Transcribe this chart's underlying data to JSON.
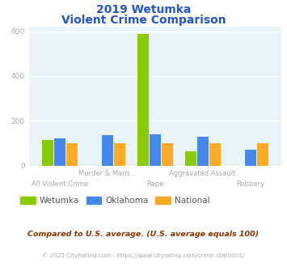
{
  "title_line1": "2019 Wetumka",
  "title_line2": "Violent Crime Comparison",
  "categories": [
    "All Violent Crime",
    "Murder & Mans...",
    "Rape",
    "Aggravated Assault",
    "Robbery"
  ],
  "wetumka": [
    115,
    0,
    588,
    65,
    0
  ],
  "oklahoma": [
    120,
    135,
    140,
    128,
    72
  ],
  "national": [
    100,
    100,
    100,
    100,
    100
  ],
  "wetumka_color": "#88cc00",
  "oklahoma_color": "#4488ee",
  "national_color": "#ffaa22",
  "bg_color": "#e8f4f8",
  "title_color": "#2255cc",
  "label_color": "#aaaaaa",
  "ylim": [
    0,
    620
  ],
  "yticks": [
    0,
    200,
    400,
    600
  ],
  "footnote1": "Compared to U.S. average. (U.S. average equals 100)",
  "footnote2": "© 2025 CityRating.com - https://www.cityrating.com/crime-statistics/",
  "footnote1_color": "#883300",
  "footnote2_color": "#aaaaaa",
  "legend_label_color": "#555555"
}
